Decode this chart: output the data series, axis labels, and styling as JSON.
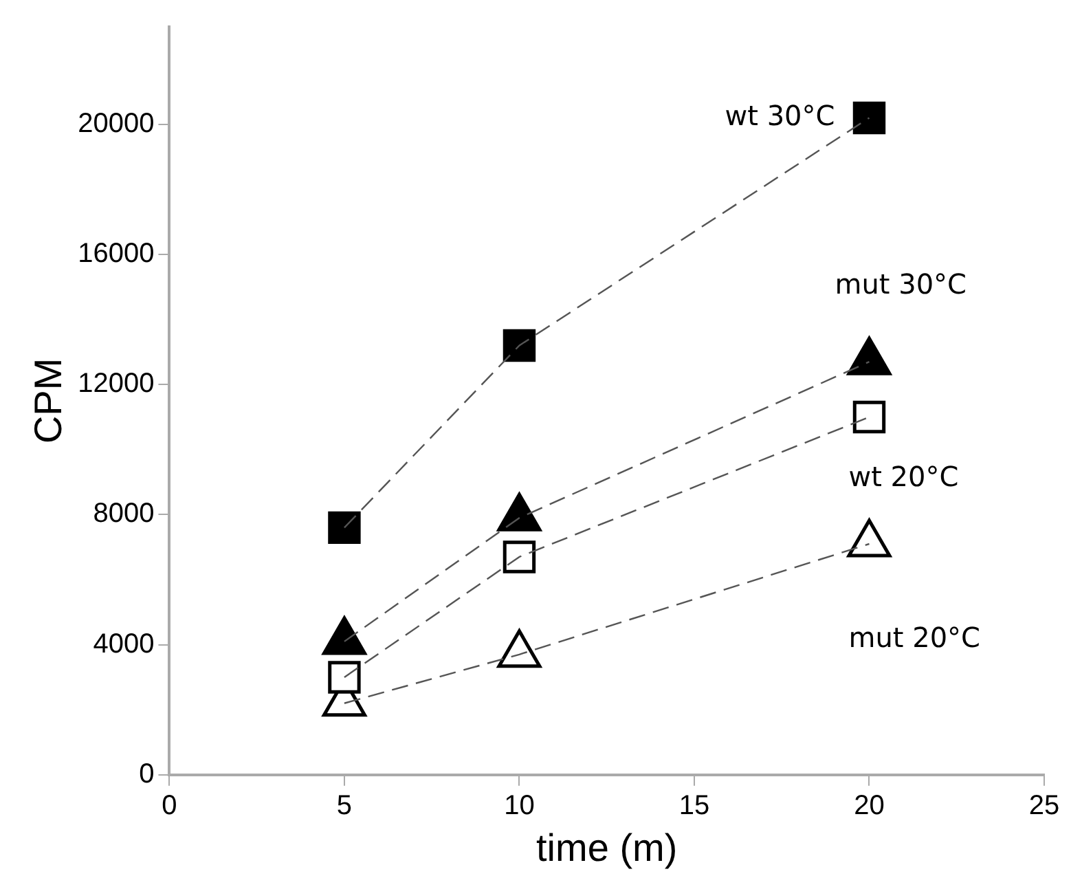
{
  "chart_data": {
    "type": "line",
    "xlabel": "time (m)",
    "ylabel": "CPM",
    "xlim": [
      0,
      25
    ],
    "xticks": [
      0,
      5,
      10,
      15,
      20,
      25
    ],
    "ylim": [
      0,
      23000
    ],
    "yticks": [
      0,
      4000,
      8000,
      12000,
      16000,
      20000
    ],
    "grid": false,
    "legend": false,
    "line_style": "dashed",
    "x": [
      5,
      10,
      20
    ],
    "series": [
      {
        "name": "wt 30°C",
        "color": "#000000",
        "marker": "square",
        "values": [
          7600,
          13200,
          20200
        ]
      },
      {
        "name": "mut 30°C",
        "color": "#000000",
        "marker": "triangle",
        "values": [
          4100,
          7900,
          12700
        ]
      },
      {
        "name": "wt 20°C",
        "color": "#ffffff",
        "marker": "square",
        "values": [
          3000,
          6700,
          11000
        ]
      },
      {
        "name": "mut 20°C",
        "color": "#ffffff",
        "marker": "triangle",
        "values": [
          2200,
          3700,
          7100
        ]
      }
    ]
  }
}
